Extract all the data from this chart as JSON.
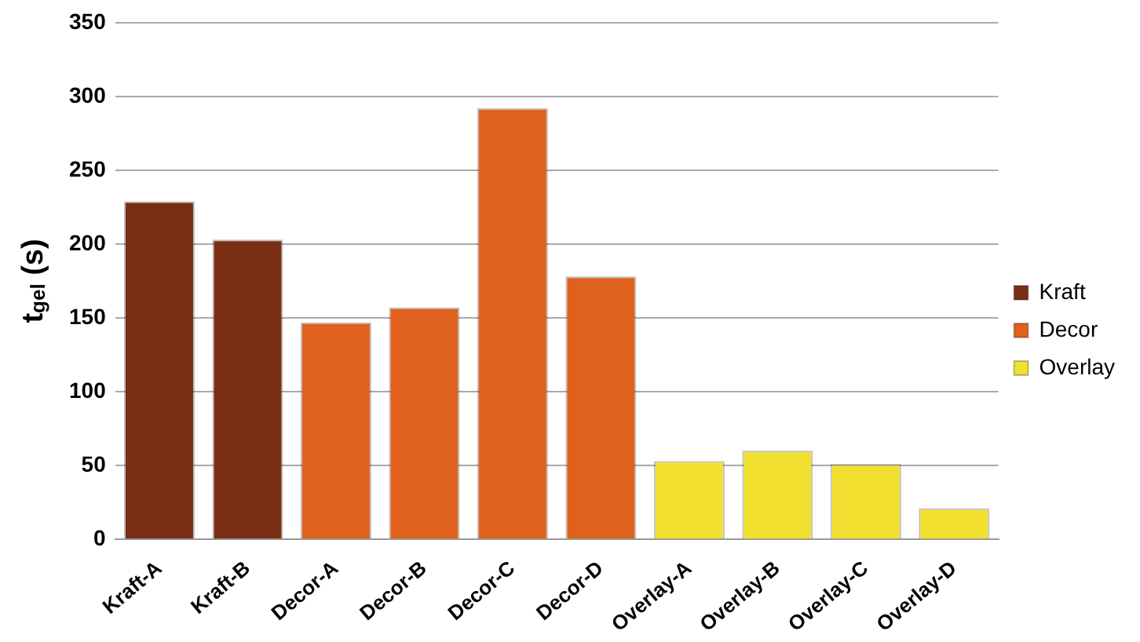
{
  "chart_data": {
    "type": "bar",
    "ylabel": "t$_{gel}$ (s)",
    "categories": [
      "Kraft-A",
      "Kraft-B",
      "Decor-A",
      "Decor-B",
      "Decor-C",
      "Decor-D",
      "Overlay-A",
      "Overlay-B",
      "Overlay-C",
      "Overlay-D"
    ],
    "series": [
      {
        "name": "Kraft",
        "color": "#7a2e14",
        "values": [
          229,
          203,
          null,
          null,
          null,
          null,
          null,
          null,
          null,
          null
        ]
      },
      {
        "name": "Decor",
        "color": "#e0601e",
        "values": [
          null,
          null,
          147,
          157,
          292,
          178,
          null,
          null,
          null,
          null
        ]
      },
      {
        "name": "Overlay",
        "color": "#f2e030",
        "values": [
          null,
          null,
          null,
          null,
          null,
          null,
          53,
          60,
          51,
          21
        ]
      }
    ],
    "ylim": [
      0,
      350
    ],
    "yticks": [
      0,
      50,
      100,
      150,
      200,
      250,
      300,
      350
    ],
    "grid": "y",
    "legend": "right"
  }
}
